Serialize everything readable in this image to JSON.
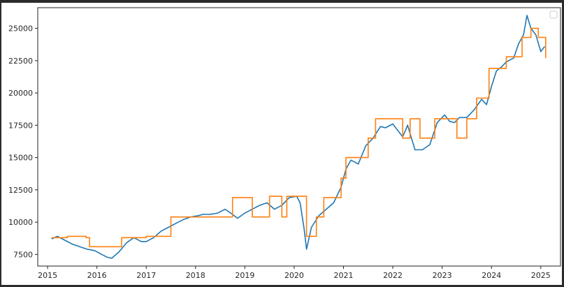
{
  "chart_data": {
    "type": "line",
    "title": "",
    "xlabel": "",
    "ylabel": "",
    "xlim": [
      2014.8,
      2025.4
    ],
    "ylim": [
      6600,
      26600
    ],
    "x_ticks": [
      2015,
      2016,
      2017,
      2018,
      2019,
      2020,
      2021,
      2022,
      2023,
      2024,
      2025
    ],
    "x_tick_labels": [
      "2015",
      "2016",
      "2017",
      "2018",
      "2019",
      "2020",
      "2021",
      "2022",
      "2023",
      "2024",
      "2025"
    ],
    "y_ticks": [
      7500,
      10000,
      12500,
      15000,
      17500,
      20000,
      22500,
      25000
    ],
    "y_tick_labels": [
      "7500",
      "10000",
      "12500",
      "15000",
      "17500",
      "20000",
      "22500",
      "25000"
    ],
    "legend": {
      "placement": "top-right",
      "entries": []
    },
    "grid": false,
    "series": [
      {
        "color": "#1f77b4",
        "style": "line",
        "x": [
          2015.08,
          2015.2,
          2015.35,
          2015.5,
          2015.65,
          2015.8,
          2015.95,
          2016.1,
          2016.2,
          2016.3,
          2016.45,
          2016.6,
          2016.75,
          2016.9,
          2017.0,
          2017.15,
          2017.3,
          2017.45,
          2017.6,
          2017.75,
          2017.9,
          2018.05,
          2018.15,
          2018.3,
          2018.45,
          2018.6,
          2018.75,
          2018.85,
          2019.0,
          2019.15,
          2019.3,
          2019.45,
          2019.6,
          2019.75,
          2019.9,
          2020.05,
          2020.12,
          2020.2,
          2020.25,
          2020.35,
          2020.5,
          2020.65,
          2020.8,
          2020.95,
          2021.05,
          2021.15,
          2021.3,
          2021.45,
          2021.6,
          2021.75,
          2021.85,
          2022.0,
          2022.1,
          2022.2,
          2022.3,
          2022.45,
          2022.6,
          2022.75,
          2022.9,
          2023.05,
          2023.15,
          2023.25,
          2023.35,
          2023.5,
          2023.65,
          2023.8,
          2023.9,
          2024.0,
          2024.1,
          2024.2,
          2024.3,
          2024.45,
          2024.55,
          2024.65,
          2024.72,
          2024.8,
          2024.9,
          2025.0,
          2025.08
        ],
        "y": [
          8700,
          8900,
          8600,
          8300,
          8100,
          7900,
          7800,
          7500,
          7300,
          7200,
          7700,
          8400,
          8800,
          8500,
          8500,
          8800,
          9300,
          9600,
          9900,
          10200,
          10400,
          10500,
          10600,
          10600,
          10700,
          11000,
          10600,
          10300,
          10700,
          11000,
          11300,
          11500,
          11000,
          11300,
          11900,
          12000,
          11500,
          9500,
          7900,
          9600,
          10500,
          11000,
          11500,
          12700,
          14100,
          14800,
          14500,
          15900,
          16500,
          17400,
          17300,
          17600,
          17100,
          16600,
          17500,
          15600,
          15600,
          16000,
          17700,
          18300,
          17800,
          17700,
          18100,
          18100,
          18700,
          19500,
          19100,
          20500,
          21700,
          22000,
          22400,
          22700,
          23800,
          24500,
          26000,
          25000,
          24500,
          23200,
          23600
        ]
      },
      {
        "color": "#ff7f0e",
        "style": "step",
        "x": [
          2015.08,
          2015.4,
          2015.6,
          2015.78,
          2015.85,
          2016.4,
          2016.5,
          2016.9,
          2017.0,
          2017.45,
          2017.5,
          2018.6,
          2018.75,
          2019.15,
          2019.5,
          2019.75,
          2019.85,
          2020.15,
          2020.25,
          2020.45,
          2020.6,
          2020.85,
          2020.95,
          2021.05,
          2021.25,
          2021.5,
          2021.65,
          2021.95,
          2022.2,
          2022.35,
          2022.55,
          2022.85,
          2022.95,
          2023.15,
          2023.3,
          2023.5,
          2023.7,
          2023.85,
          2023.95,
          2024.1,
          2024.3,
          2024.45,
          2024.62,
          2024.8,
          2024.95,
          2025.05,
          2025.1
        ],
        "y": [
          8800,
          8900,
          8900,
          8800,
          8100,
          8100,
          8800,
          8800,
          8900,
          8900,
          10400,
          10400,
          11900,
          10400,
          12000,
          10400,
          12000,
          12000,
          8900,
          10400,
          11900,
          11900,
          13400,
          15000,
          15000,
          16500,
          18000,
          18000,
          16500,
          18000,
          16500,
          18000,
          18000,
          18000,
          16500,
          18000,
          19600,
          19600,
          21900,
          21900,
          22800,
          22800,
          24300,
          25000,
          24300,
          24300,
          22700
        ]
      }
    ]
  }
}
